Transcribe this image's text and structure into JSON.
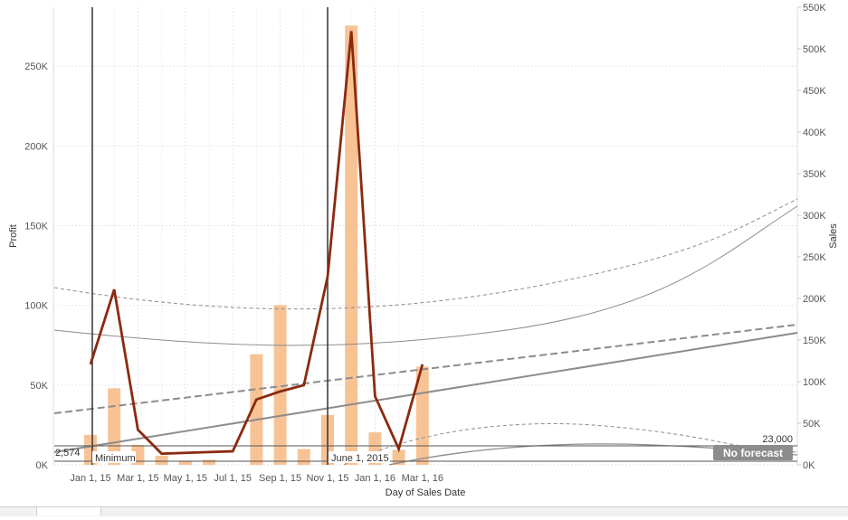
{
  "chart_data": {
    "type": "bar",
    "combo": "dual-axis bar (Sales) + line (Profit) with trend lines and forecast bands",
    "xlabel": "Day of Sales Date",
    "ylabel_left": "Profit",
    "ylabel_right": "Sales",
    "x_tick_labels": [
      "Jan 1, 15",
      "Mar 1, 15",
      "May 1, 15",
      "Jul 1, 15",
      "Sep 1, 15",
      "Nov 1, 15",
      "Jan 1, 16",
      "Mar 1, 16"
    ],
    "y_left_ticks": [
      "0K",
      "50K",
      "100K",
      "150K",
      "200K",
      "250K"
    ],
    "y_right_ticks": [
      "0K",
      "50K",
      "100K",
      "150K",
      "200K",
      "250K",
      "300K",
      "350K",
      "400K",
      "450K",
      "500K",
      "550K"
    ],
    "ylim_left": [
      0,
      287000
    ],
    "ylim_right": [
      0,
      550000
    ],
    "grid": true,
    "x": [
      "2015-01",
      "2015-02",
      "2015-03",
      "2015-04",
      "2015-05",
      "2015-06",
      "2015-07",
      "2015-08",
      "2015-09",
      "2015-10",
      "2015-11",
      "2015-12",
      "2016-01",
      "2016-02",
      "2016-03"
    ],
    "series": [
      {
        "name": "Sales",
        "kind": "bar",
        "axis": "right",
        "color": "#f6b982",
        "values": [
          36000,
          92000,
          24000,
          11000,
          5000,
          6000,
          0,
          133000,
          192000,
          19000,
          60000,
          528000,
          39000,
          18000,
          118000
        ]
      },
      {
        "name": "Profit",
        "kind": "line",
        "axis": "left",
        "color": "#8b2a10",
        "values": [
          63000,
          110000,
          22000,
          7000,
          7500,
          8000,
          8500,
          41000,
          46000,
          50000,
          118000,
          272000,
          43000,
          10000,
          63000
        ]
      }
    ],
    "reference_lines": [
      {
        "label": "Minimum",
        "value_label": "2,574"
      },
      {
        "label": "June 1, 2015"
      },
      {
        "value_label": "23,000"
      }
    ],
    "badge": "No forecast",
    "colors": {
      "bar": "#f6b982",
      "profit_line": "#8b2a10",
      "trend": "#888888",
      "reference": "#333333",
      "badge_bg": "#8c8c8c"
    }
  }
}
